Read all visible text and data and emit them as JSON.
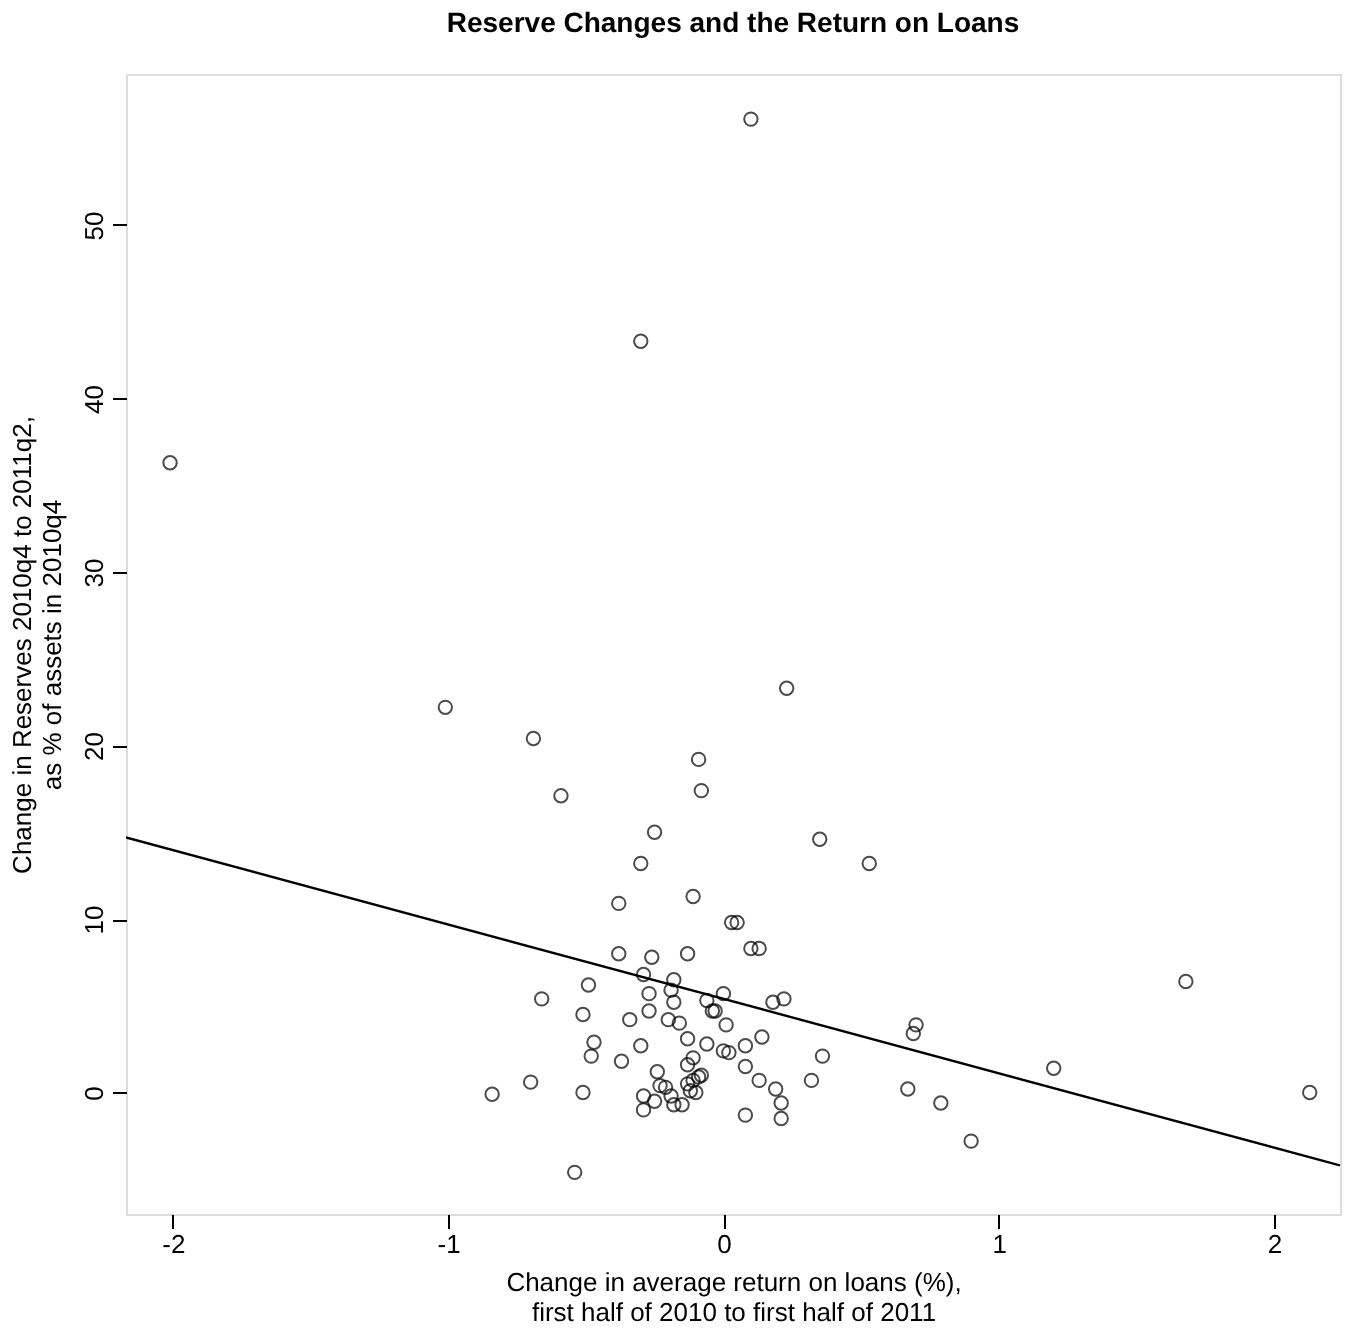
{
  "chart_data": {
    "type": "scatter",
    "title": "Reserve Changes and the Return on Loans",
    "xlabel": "Change in average return on loans (%),\nfirst half of 2010 to first half of 2011",
    "ylabel": "Change in Reserves 2010q4 to 2011q2,\nas % of assets in 2010q4",
    "xlim": [
      -2.17,
      2.24
    ],
    "ylim": [
      -7,
      58.7
    ],
    "xticks": [
      {
        "value": -2,
        "label": "-2"
      },
      {
        "value": -1,
        "label": "-1"
      },
      0,
      1,
      2
    ],
    "yticks": [
      0,
      10,
      20,
      30,
      40,
      50
    ],
    "grid": false,
    "series": [
      {
        "marker": "circle",
        "color": "#000000",
        "x": [
          0.1,
          -0.3,
          -2.01,
          -1.01,
          0.23,
          -0.69,
          -0.09,
          -0.59,
          -0.08,
          -0.25,
          -0.3,
          0.35,
          0.53,
          -0.38,
          -0.11,
          0.03,
          0.05,
          0.1,
          0.13,
          -0.38,
          -0.26,
          -0.13,
          -0.29,
          -0.18,
          -0.49,
          -0.19,
          -0.27,
          0.0,
          -0.66,
          -0.18,
          -0.06,
          0.18,
          0.22,
          -0.51,
          -0.27,
          -0.04,
          -0.03,
          -0.34,
          -0.2,
          -0.16,
          0.01,
          0.7,
          0.69,
          1.68,
          -0.47,
          -0.3,
          -0.13,
          -0.06,
          0.0,
          0.02,
          0.08,
          0.14,
          0.36,
          -0.48,
          -0.37,
          -0.11,
          -0.13,
          0.08,
          1.2,
          -0.24,
          -0.09,
          -0.08,
          -0.23,
          -0.21,
          -0.13,
          -0.11,
          -0.12,
          -0.1,
          0.13,
          0.32,
          -0.84,
          -0.7,
          -0.51,
          -0.29,
          -0.19,
          -0.25,
          -0.18,
          -0.15,
          -0.29,
          0.19,
          0.21,
          0.21,
          0.08,
          0.67,
          0.79,
          0.9,
          2.13,
          -0.54
        ],
        "values": [
          56.1,
          43.3,
          36.3,
          22.2,
          23.3,
          20.4,
          19.2,
          17.1,
          17.4,
          15.0,
          13.2,
          14.6,
          13.2,
          10.9,
          11.3,
          9.8,
          9.8,
          8.3,
          8.3,
          8.0,
          7.8,
          8.0,
          6.8,
          6.5,
          6.2,
          5.9,
          5.7,
          5.7,
          5.4,
          5.2,
          5.3,
          5.2,
          5.4,
          4.5,
          4.7,
          4.7,
          4.7,
          4.2,
          4.2,
          4.0,
          3.9,
          3.9,
          3.4,
          6.4,
          2.9,
          2.7,
          3.1,
          2.8,
          2.4,
          2.3,
          2.7,
          3.2,
          2.1,
          2.1,
          1.8,
          2.0,
          1.6,
          1.5,
          1.4,
          1.2,
          0.9,
          1.0,
          0.4,
          0.3,
          0.5,
          0.7,
          0.1,
          0.0,
          0.7,
          0.7,
          -0.1,
          0.6,
          0.0,
          -0.2,
          -0.2,
          -0.5,
          -0.7,
          -0.7,
          -1.0,
          0.2,
          -0.6,
          -1.5,
          -1.3,
          0.2,
          -0.6,
          -2.8,
          0.0,
          -4.6
        ]
      },
      {
        "type": "line",
        "color": "#000000",
        "x": [
          -2.17,
          2.24
        ],
        "values": [
          14.7,
          -4.2
        ]
      }
    ]
  }
}
